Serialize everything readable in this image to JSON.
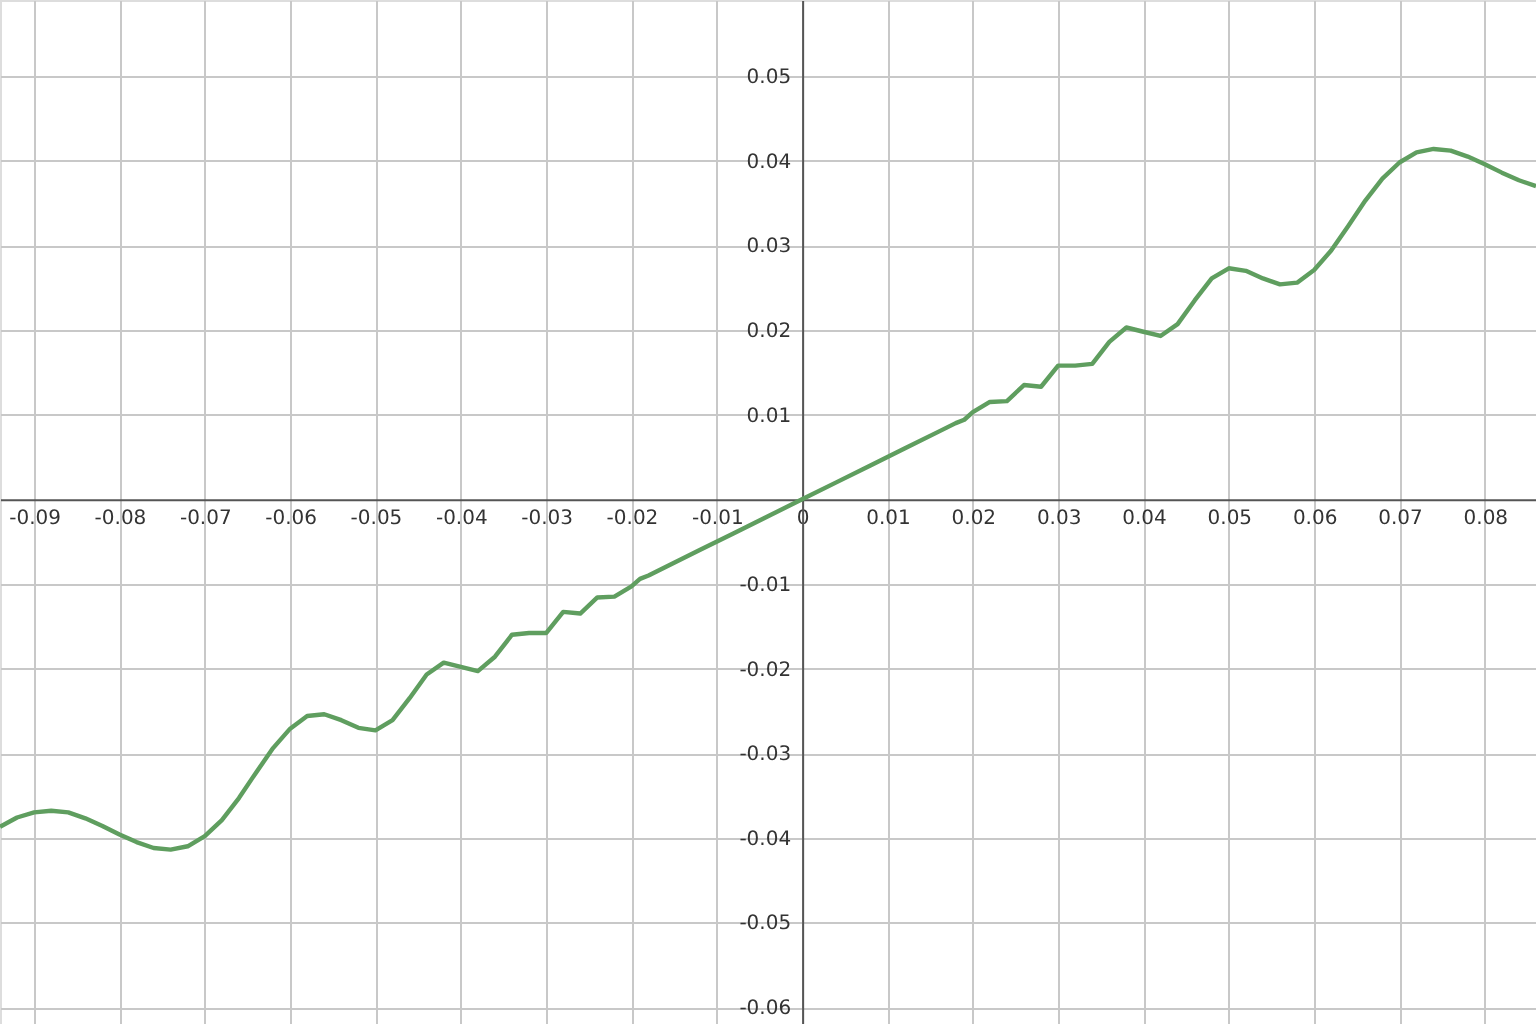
{
  "chart_data": {
    "type": "line",
    "xlim": [
      -0.094,
      0.086
    ],
    "ylim": [
      -0.062,
      0.059
    ],
    "xticks": [
      -0.09,
      -0.08,
      -0.07,
      -0.06,
      -0.05,
      -0.04,
      -0.03,
      -0.02,
      -0.01,
      0,
      0.01,
      0.02,
      0.03,
      0.04,
      0.05,
      0.06,
      0.07,
      0.08
    ],
    "yticks": [
      -0.06,
      -0.05,
      -0.04,
      -0.03,
      -0.02,
      -0.01,
      0.01,
      0.02,
      0.03,
      0.04,
      0.05
    ],
    "grid": true,
    "marker": "none",
    "line_style": "solid",
    "series": [
      {
        "color": "#5f9e5f",
        "x": [
          -0.094,
          -0.092,
          -0.09,
          -0.088,
          -0.086,
          -0.084,
          -0.082,
          -0.08,
          -0.078,
          -0.076,
          -0.074,
          -0.072,
          -0.07,
          -0.068,
          -0.066,
          -0.064,
          -0.062,
          -0.06,
          -0.058,
          -0.056,
          -0.054,
          -0.052,
          -0.05,
          -0.048,
          -0.046,
          -0.044,
          -0.042,
          -0.04,
          -0.038,
          -0.036,
          -0.034,
          -0.032,
          -0.03,
          -0.028,
          -0.026,
          -0.024,
          -0.022,
          -0.02,
          -0.019,
          -0.018,
          -0.017,
          -0.016,
          -0.012,
          -0.008,
          -0.004,
          0,
          0.004,
          0.008,
          0.012,
          0.016,
          0.017,
          0.018,
          0.019,
          0.02,
          0.022,
          0.024,
          0.026,
          0.028,
          0.03,
          0.032,
          0.034,
          0.036,
          0.038,
          0.04,
          0.042,
          0.044,
          0.046,
          0.048,
          0.05,
          0.052,
          0.054,
          0.056,
          0.058,
          0.06,
          0.062,
          0.064,
          0.066,
          0.068,
          0.07,
          0.072,
          0.074,
          0.076,
          0.078,
          0.08,
          0.082,
          0.084,
          0.086
        ],
        "values": [
          -0.0387,
          -0.0376,
          -0.037,
          -0.0368,
          -0.037,
          -0.0377,
          -0.0386,
          -0.0396,
          -0.0405,
          -0.0412,
          -0.0414,
          -0.041,
          -0.0398,
          -0.0379,
          -0.0353,
          -0.0323,
          -0.0294,
          -0.0271,
          -0.0256,
          -0.0254,
          -0.0261,
          -0.027,
          -0.0273,
          -0.0261,
          -0.0235,
          -0.0207,
          -0.0193,
          -0.0198,
          -0.0203,
          -0.0186,
          -0.016,
          -0.0158,
          -0.0158,
          -0.0133,
          -0.0135,
          -0.0116,
          -0.0115,
          -0.0103,
          -0.0094,
          -0.009,
          -0.0085,
          -0.008,
          -0.006,
          -0.004,
          -0.002,
          0,
          0.002,
          0.004,
          0.006,
          0.008,
          0.0085,
          0.009,
          0.0094,
          0.0103,
          0.0115,
          0.0116,
          0.0135,
          0.0133,
          0.0158,
          0.0158,
          0.016,
          0.0186,
          0.0203,
          0.0198,
          0.0193,
          0.0207,
          0.0235,
          0.0261,
          0.0273,
          0.027,
          0.0261,
          0.0254,
          0.0256,
          0.0271,
          0.0294,
          0.0323,
          0.0353,
          0.0379,
          0.0398,
          0.041,
          0.0414,
          0.0412,
          0.0405,
          0.0396,
          0.0386,
          0.0377,
          0.037
        ]
      }
    ]
  }
}
